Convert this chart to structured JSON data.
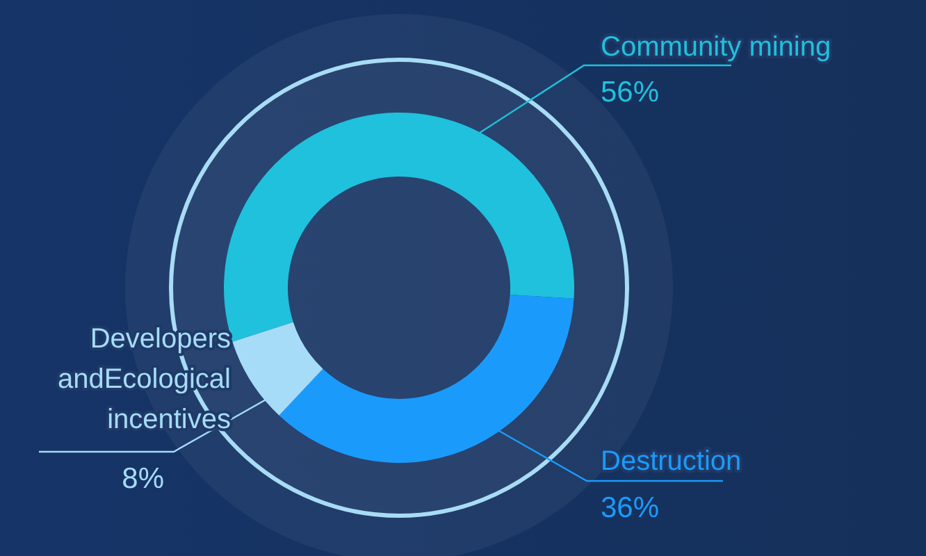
{
  "chart_data": {
    "type": "donut",
    "categories": [
      "Community mining",
      "Destruction",
      "Developers andEcological incentives"
    ],
    "values": [
      56,
      36,
      8
    ],
    "colors": [
      "#1fc1dd",
      "#1a9bfc",
      "#a6dcf7"
    ],
    "value_labels": [
      "56%",
      "36%",
      "8%"
    ]
  }
}
